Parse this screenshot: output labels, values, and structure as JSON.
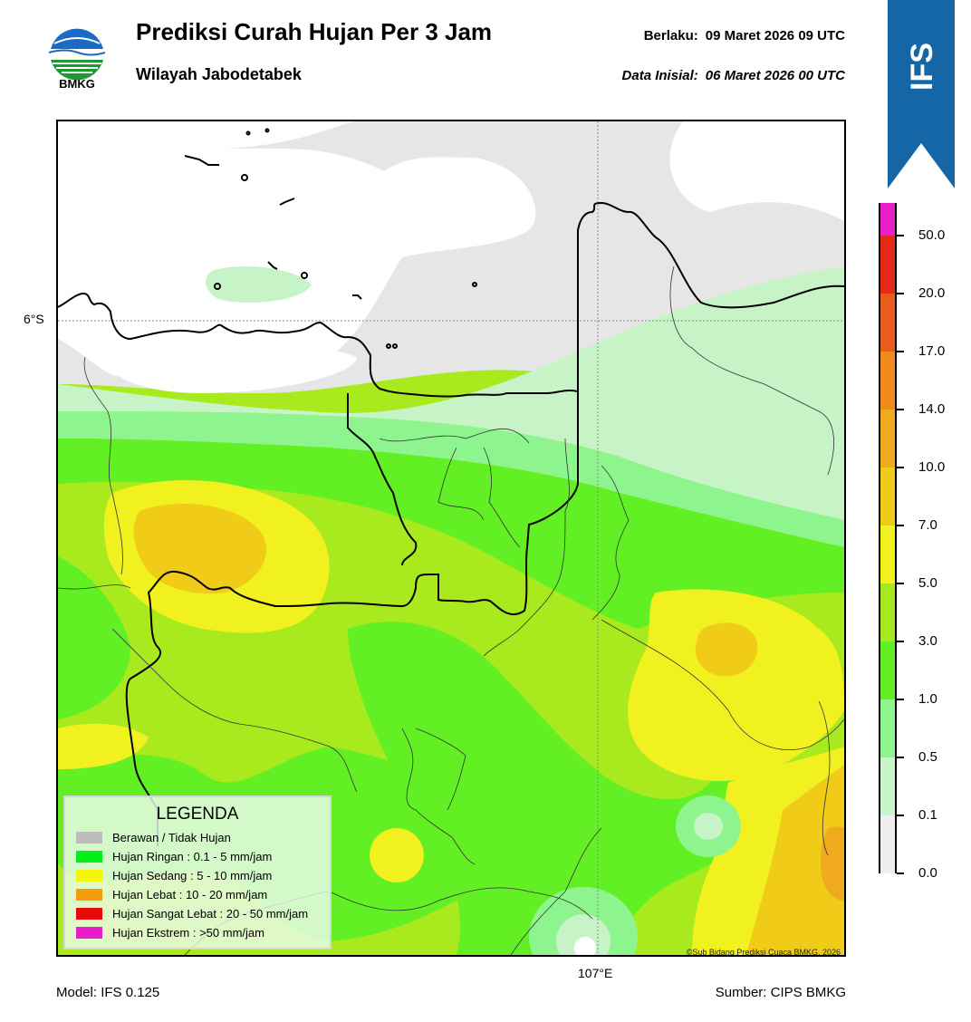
{
  "header": {
    "logo_text": "BMKG",
    "title": "Prediksi Curah Hujan Per 3 Jam",
    "subtitle": "Wilayah Jabodetabek",
    "valid_label": "Berlaku:",
    "valid_value": "09 Maret 2026 09 UTC",
    "init_label": "Data Inisial:",
    "init_value": "06 Maret 2026 00 UTC",
    "banner_text": "IFS"
  },
  "map": {
    "lat_label": "6°S",
    "lon_label": "107°E",
    "copyright": "©Sub Bidang Prediksi Cuaca BMKG, 2026"
  },
  "colorbar": {
    "labels": [
      "50.0",
      "20.0",
      "17.0",
      "14.0",
      "10.0",
      "7.0",
      "5.0",
      "3.0",
      "1.0",
      "0.5",
      "0.1",
      "0.0"
    ],
    "colors": [
      "#e820c8",
      "#e62a1a",
      "#ea5c1c",
      "#ef8a1c",
      "#efaa1e",
      "#f0cc18",
      "#f1f11f",
      "#a8e820",
      "#62f025",
      "#90f590",
      "#c8f5c8",
      "#efefef"
    ]
  },
  "legend": {
    "title": "LEGENDA",
    "items": [
      {
        "label": "Berawan / Tidak Hujan",
        "color": "#bdbdbd"
      },
      {
        "label": "Hujan Ringan : 0.1 - 5 mm/jam",
        "color": "#00f01c"
      },
      {
        "label": "Hujan Sedang : 5 - 10 mm/jam",
        "color": "#f5f50a"
      },
      {
        "label": "Hujan Lebat : 10 - 20 mm/jam",
        "color": "#f59c0a"
      },
      {
        "label": "Hujan Sangat Lebat : 20 - 50 mm/jam",
        "color": "#e80a0a"
      },
      {
        "label": "Hujan Ekstrem : >50 mm/jam",
        "color": "#e81cc8"
      }
    ]
  },
  "footer": {
    "model": "Model: IFS 0.125",
    "source": "Sumber: CIPS BMKG"
  }
}
